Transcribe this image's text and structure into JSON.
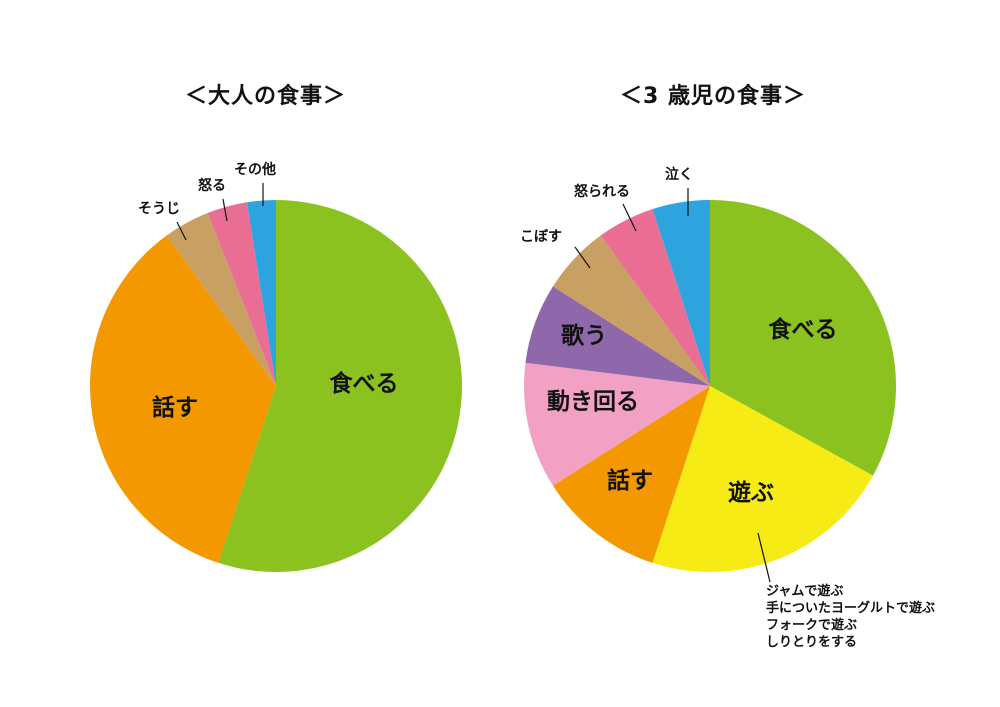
{
  "chart_data": [
    {
      "type": "pie",
      "title": "＜大人の食事＞",
      "start": "12 o'clock, clockwise",
      "slices": [
        {
          "label": "食べる",
          "value": 55,
          "color": "#8cc21f",
          "label_pos": "inside"
        },
        {
          "label": "話す",
          "value": 35,
          "color": "#f39800",
          "label_pos": "inside"
        },
        {
          "label": "そうじ",
          "value": 4,
          "color": "#c9a063",
          "label_pos": "outside"
        },
        {
          "label": "怒る",
          "value": 3.5,
          "color": "#ea6e93",
          "label_pos": "outside"
        },
        {
          "label": "その他",
          "value": 2.5,
          "color": "#2ea4df",
          "label_pos": "outside"
        }
      ]
    },
    {
      "type": "pie",
      "title": "＜3 歳児の食事＞",
      "start": "12 o'clock, clockwise",
      "slices": [
        {
          "label": "食べる",
          "value": 33,
          "color": "#8cc21f",
          "label_pos": "inside"
        },
        {
          "label": "遊ぶ",
          "value": 22,
          "color": "#f6eb14",
          "label_pos": "inside"
        },
        {
          "label": "話す",
          "value": 11,
          "color": "#f39800",
          "label_pos": "inside"
        },
        {
          "label": "動き回る",
          "value": 11,
          "color": "#f2a0c4",
          "label_pos": "inside"
        },
        {
          "label": "歌う",
          "value": 7,
          "color": "#8e68aa",
          "label_pos": "inside"
        },
        {
          "label": "こぼす",
          "value": 6,
          "color": "#c9a063",
          "label_pos": "outside"
        },
        {
          "label": "怒られる",
          "value": 5,
          "color": "#ea6e93",
          "label_pos": "outside"
        },
        {
          "label": "泣く",
          "value": 5,
          "color": "#2ea4df",
          "label_pos": "outside"
        }
      ],
      "annotation": {
        "target": "遊ぶ",
        "lines": [
          "ジャムで遊ぶ",
          "手についたヨーグルトで遊ぶ",
          "フォークで遊ぶ",
          "しりとりをする"
        ]
      }
    }
  ]
}
